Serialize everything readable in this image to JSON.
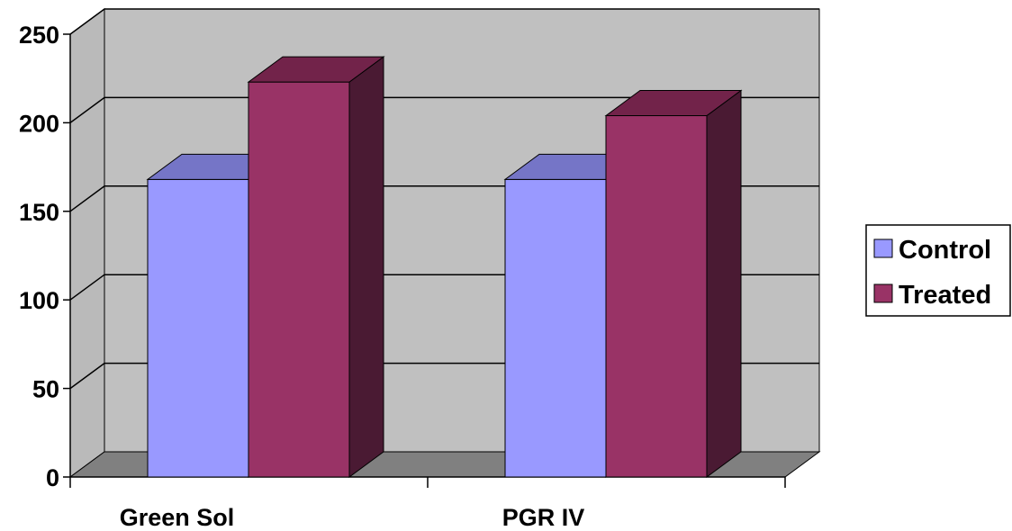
{
  "chart_data": {
    "type": "bar",
    "style": "3d-clustered-column",
    "categories": [
      "Green Sol",
      "PGR IV"
    ],
    "series": [
      {
        "name": "Control",
        "values": [
          168,
          168
        ],
        "color": "#9999FF",
        "top_color": "#7575C7",
        "side_color": "#5A5AA0"
      },
      {
        "name": "Treated",
        "values": [
          223,
          204
        ],
        "color": "#993366",
        "top_color": "#72234A",
        "side_color": "#4A1A33"
      }
    ],
    "title": "",
    "xlabel": "",
    "ylabel": "",
    "ylim": [
      0,
      250
    ],
    "yticks": [
      "0",
      "50",
      "100",
      "150",
      "200",
      "250"
    ],
    "grid": true,
    "legend_position": "right",
    "colors": {
      "wall": "#C0C0C0",
      "side_wall": "#BABABA",
      "floor": "#808080",
      "gridline": "#000000"
    }
  }
}
